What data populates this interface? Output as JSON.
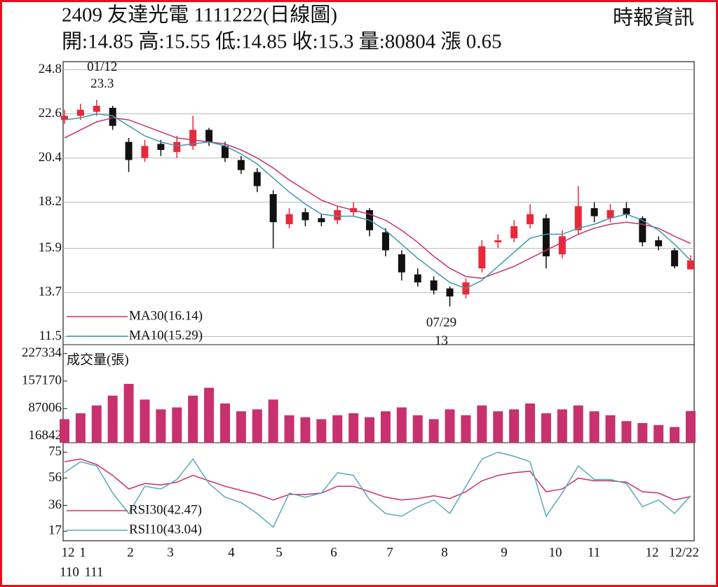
{
  "header": {
    "title": "2409  友達光電 1111222(日線圖)",
    "quote": "開:14.85 高:15.55 低:14.85 收:15.3 量:80804 漲 0.65",
    "source": "時報資訊"
  },
  "x_labels": [
    "12",
    "1",
    "2",
    "3",
    "4",
    "5",
    "6",
    "7",
    "8",
    "9",
    "10",
    "11",
    "12",
    "12/22"
  ],
  "year_labels": [
    "110",
    "111"
  ],
  "chart_data": [
    {
      "type": "candlestick",
      "open": [
        22.3,
        22.5,
        22.7,
        22.9,
        21.2,
        20.4,
        21.1,
        20.7,
        21.0,
        21.8,
        21.0,
        20.3,
        19.7,
        18.6,
        17.1,
        17.7,
        17.4,
        17.3,
        17.7,
        17.8,
        16.7,
        15.6,
        14.6,
        14.3,
        13.9,
        13.6,
        14.9,
        16.2,
        16.4,
        17.1,
        17.4,
        15.6,
        16.8,
        17.9,
        17.4,
        17.9,
        17.4,
        16.3,
        15.8,
        14.85
      ],
      "high": [
        22.8,
        23.1,
        23.3,
        23.0,
        21.4,
        21.3,
        21.3,
        21.5,
        22.5,
        21.9,
        21.2,
        20.5,
        19.9,
        18.8,
        17.9,
        17.9,
        17.6,
        18.0,
        18.2,
        17.9,
        16.9,
        15.8,
        14.9,
        14.5,
        14.0,
        14.4,
        16.3,
        16.6,
        17.3,
        18.1,
        17.6,
        16.8,
        19.0,
        18.2,
        18.1,
        18.2,
        17.5,
        16.5,
        15.9,
        15.55
      ],
      "low": [
        22.1,
        22.3,
        22.5,
        21.8,
        19.7,
        20.2,
        20.5,
        20.4,
        20.8,
        21.0,
        20.2,
        19.6,
        18.7,
        15.9,
        16.9,
        17.0,
        17.0,
        17.1,
        17.5,
        16.5,
        15.5,
        14.3,
        14.0,
        13.6,
        13.0,
        13.4,
        14.7,
        15.9,
        16.2,
        16.9,
        14.9,
        15.4,
        16.6,
        17.2,
        17.2,
        17.4,
        16.0,
        15.8,
        14.9,
        14.85
      ],
      "close": [
        22.5,
        22.8,
        23.0,
        22.0,
        20.3,
        21.0,
        20.8,
        21.2,
        21.8,
        21.2,
        20.4,
        19.8,
        19.0,
        17.2,
        17.6,
        17.3,
        17.2,
        17.8,
        17.9,
        16.8,
        15.8,
        14.7,
        14.2,
        13.8,
        13.5,
        14.2,
        16.0,
        16.3,
        17.0,
        17.6,
        15.5,
        16.5,
        18.0,
        17.5,
        17.8,
        17.6,
        16.2,
        16.0,
        15.0,
        15.3
      ],
      "up_color": "#e8283c",
      "down_color": "#111111",
      "series": [
        {
          "name": "MA30(16.14)",
          "color": "#c8306e",
          "values": [
            21.4,
            21.8,
            22.2,
            22.4,
            22.3,
            22.0,
            21.7,
            21.4,
            21.3,
            21.2,
            21.1,
            20.8,
            20.4,
            19.9,
            19.3,
            18.8,
            18.3,
            18.0,
            17.8,
            17.6,
            17.3,
            16.8,
            16.2,
            15.5,
            14.9,
            14.5,
            14.4,
            14.7,
            15.0,
            15.4,
            15.8,
            16.2,
            16.6,
            16.9,
            17.1,
            17.2,
            17.1,
            16.9,
            16.5,
            16.14
          ]
        },
        {
          "name": "MA10(15.29)",
          "color": "#3a9aaa",
          "values": [
            22.3,
            22.4,
            22.6,
            22.5,
            22.0,
            21.5,
            21.2,
            21.0,
            21.1,
            21.2,
            21.0,
            20.6,
            20.1,
            19.4,
            18.7,
            18.1,
            17.6,
            17.5,
            17.5,
            17.3,
            16.8,
            16.1,
            15.4,
            14.8,
            14.2,
            13.9,
            14.3,
            15.0,
            15.7,
            16.4,
            16.6,
            16.6,
            16.9,
            17.1,
            17.4,
            17.6,
            17.3,
            16.8,
            16.1,
            15.29
          ]
        }
      ],
      "annotations": {
        "high_date": "01/12",
        "high_value": 23.3,
        "low_date": "07/29",
        "low_value": 13
      },
      "ylim": [
        11.1,
        25.2
      ],
      "yticks": [
        24.8,
        22.6,
        20.4,
        18.2,
        15.9,
        13.7,
        11.5
      ],
      "grid": true
    },
    {
      "type": "bar",
      "title": "成交量(張)",
      "color": "#c8306e",
      "values": [
        60000,
        75000,
        95000,
        120000,
        150000,
        110000,
        85000,
        90000,
        120000,
        140000,
        100000,
        80000,
        85000,
        110000,
        70000,
        65000,
        60000,
        70000,
        75000,
        65000,
        80000,
        90000,
        70000,
        60000,
        85000,
        70000,
        95000,
        80000,
        85000,
        100000,
        75000,
        85000,
        95000,
        80000,
        70000,
        55000,
        50000,
        45000,
        40000,
        80804
      ],
      "ylim": [
        0,
        250000
      ],
      "yticks": [
        227334,
        157170,
        87006,
        16842
      ]
    },
    {
      "type": "line",
      "series": [
        {
          "name": "RSI30(42.47)",
          "color": "#c8306e",
          "values": [
            68,
            70,
            66,
            58,
            48,
            52,
            51,
            53,
            58,
            54,
            50,
            47,
            44,
            40,
            44,
            44,
            45,
            50,
            50,
            46,
            42,
            40,
            41,
            43,
            41,
            46,
            54,
            58,
            60,
            61,
            46,
            48,
            56,
            54,
            54,
            53,
            46,
            45,
            40,
            42.47
          ]
        },
        {
          "name": "RSI10(43.04)",
          "color": "#5aaab8",
          "values": [
            60,
            68,
            65,
            45,
            30,
            50,
            48,
            55,
            70,
            52,
            42,
            38,
            30,
            20,
            45,
            42,
            45,
            60,
            58,
            40,
            30,
            28,
            35,
            40,
            30,
            50,
            70,
            75,
            72,
            68,
            28,
            45,
            65,
            55,
            55,
            52,
            35,
            40,
            30,
            43.04
          ]
        }
      ],
      "ylim": [
        10,
        82
      ],
      "yticks": [
        75,
        56,
        36,
        17
      ]
    }
  ]
}
